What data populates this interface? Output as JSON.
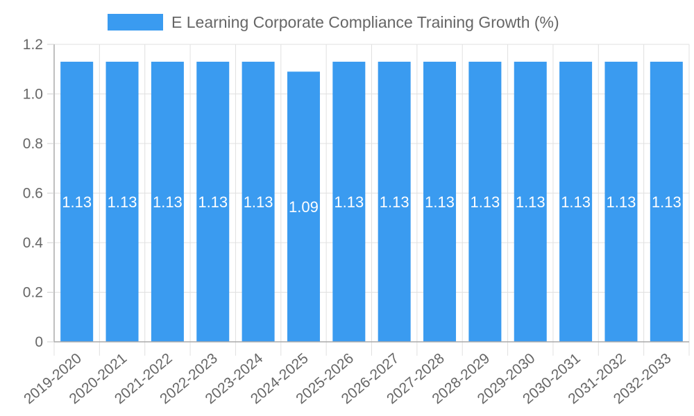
{
  "chart_data": {
    "type": "bar",
    "title": "",
    "legend": [
      "E Learning Corporate Compliance Training Growth (%)"
    ],
    "legend_position": "top",
    "xlabel": "",
    "ylabel": "",
    "ylim": [
      0,
      1.2
    ],
    "yticks": [
      "0",
      "0.2",
      "0.4",
      "0.6",
      "0.8",
      "1.0",
      "1.2"
    ],
    "grid": true,
    "color": "#3a9bf0",
    "categories": [
      "2019-2020",
      "2020-2021",
      "2021-2022",
      "2022-2023",
      "2023-2024",
      "2024-2025",
      "2025-2026",
      "2026-2027",
      "2027-2028",
      "2028-2029",
      "2029-2030",
      "2030-2031",
      "2031-2032",
      "2032-2033"
    ],
    "series": [
      {
        "name": "E Learning Corporate Compliance Training Growth (%)",
        "values": [
          1.13,
          1.13,
          1.13,
          1.13,
          1.13,
          1.09,
          1.13,
          1.13,
          1.13,
          1.13,
          1.13,
          1.13,
          1.13,
          1.13
        ]
      }
    ],
    "data_labels": [
      "1.13",
      "1.13",
      "1.13",
      "1.13",
      "1.13",
      "1.09",
      "1.13",
      "1.13",
      "1.13",
      "1.13",
      "1.13",
      "1.13",
      "1.13",
      "1.13"
    ]
  }
}
